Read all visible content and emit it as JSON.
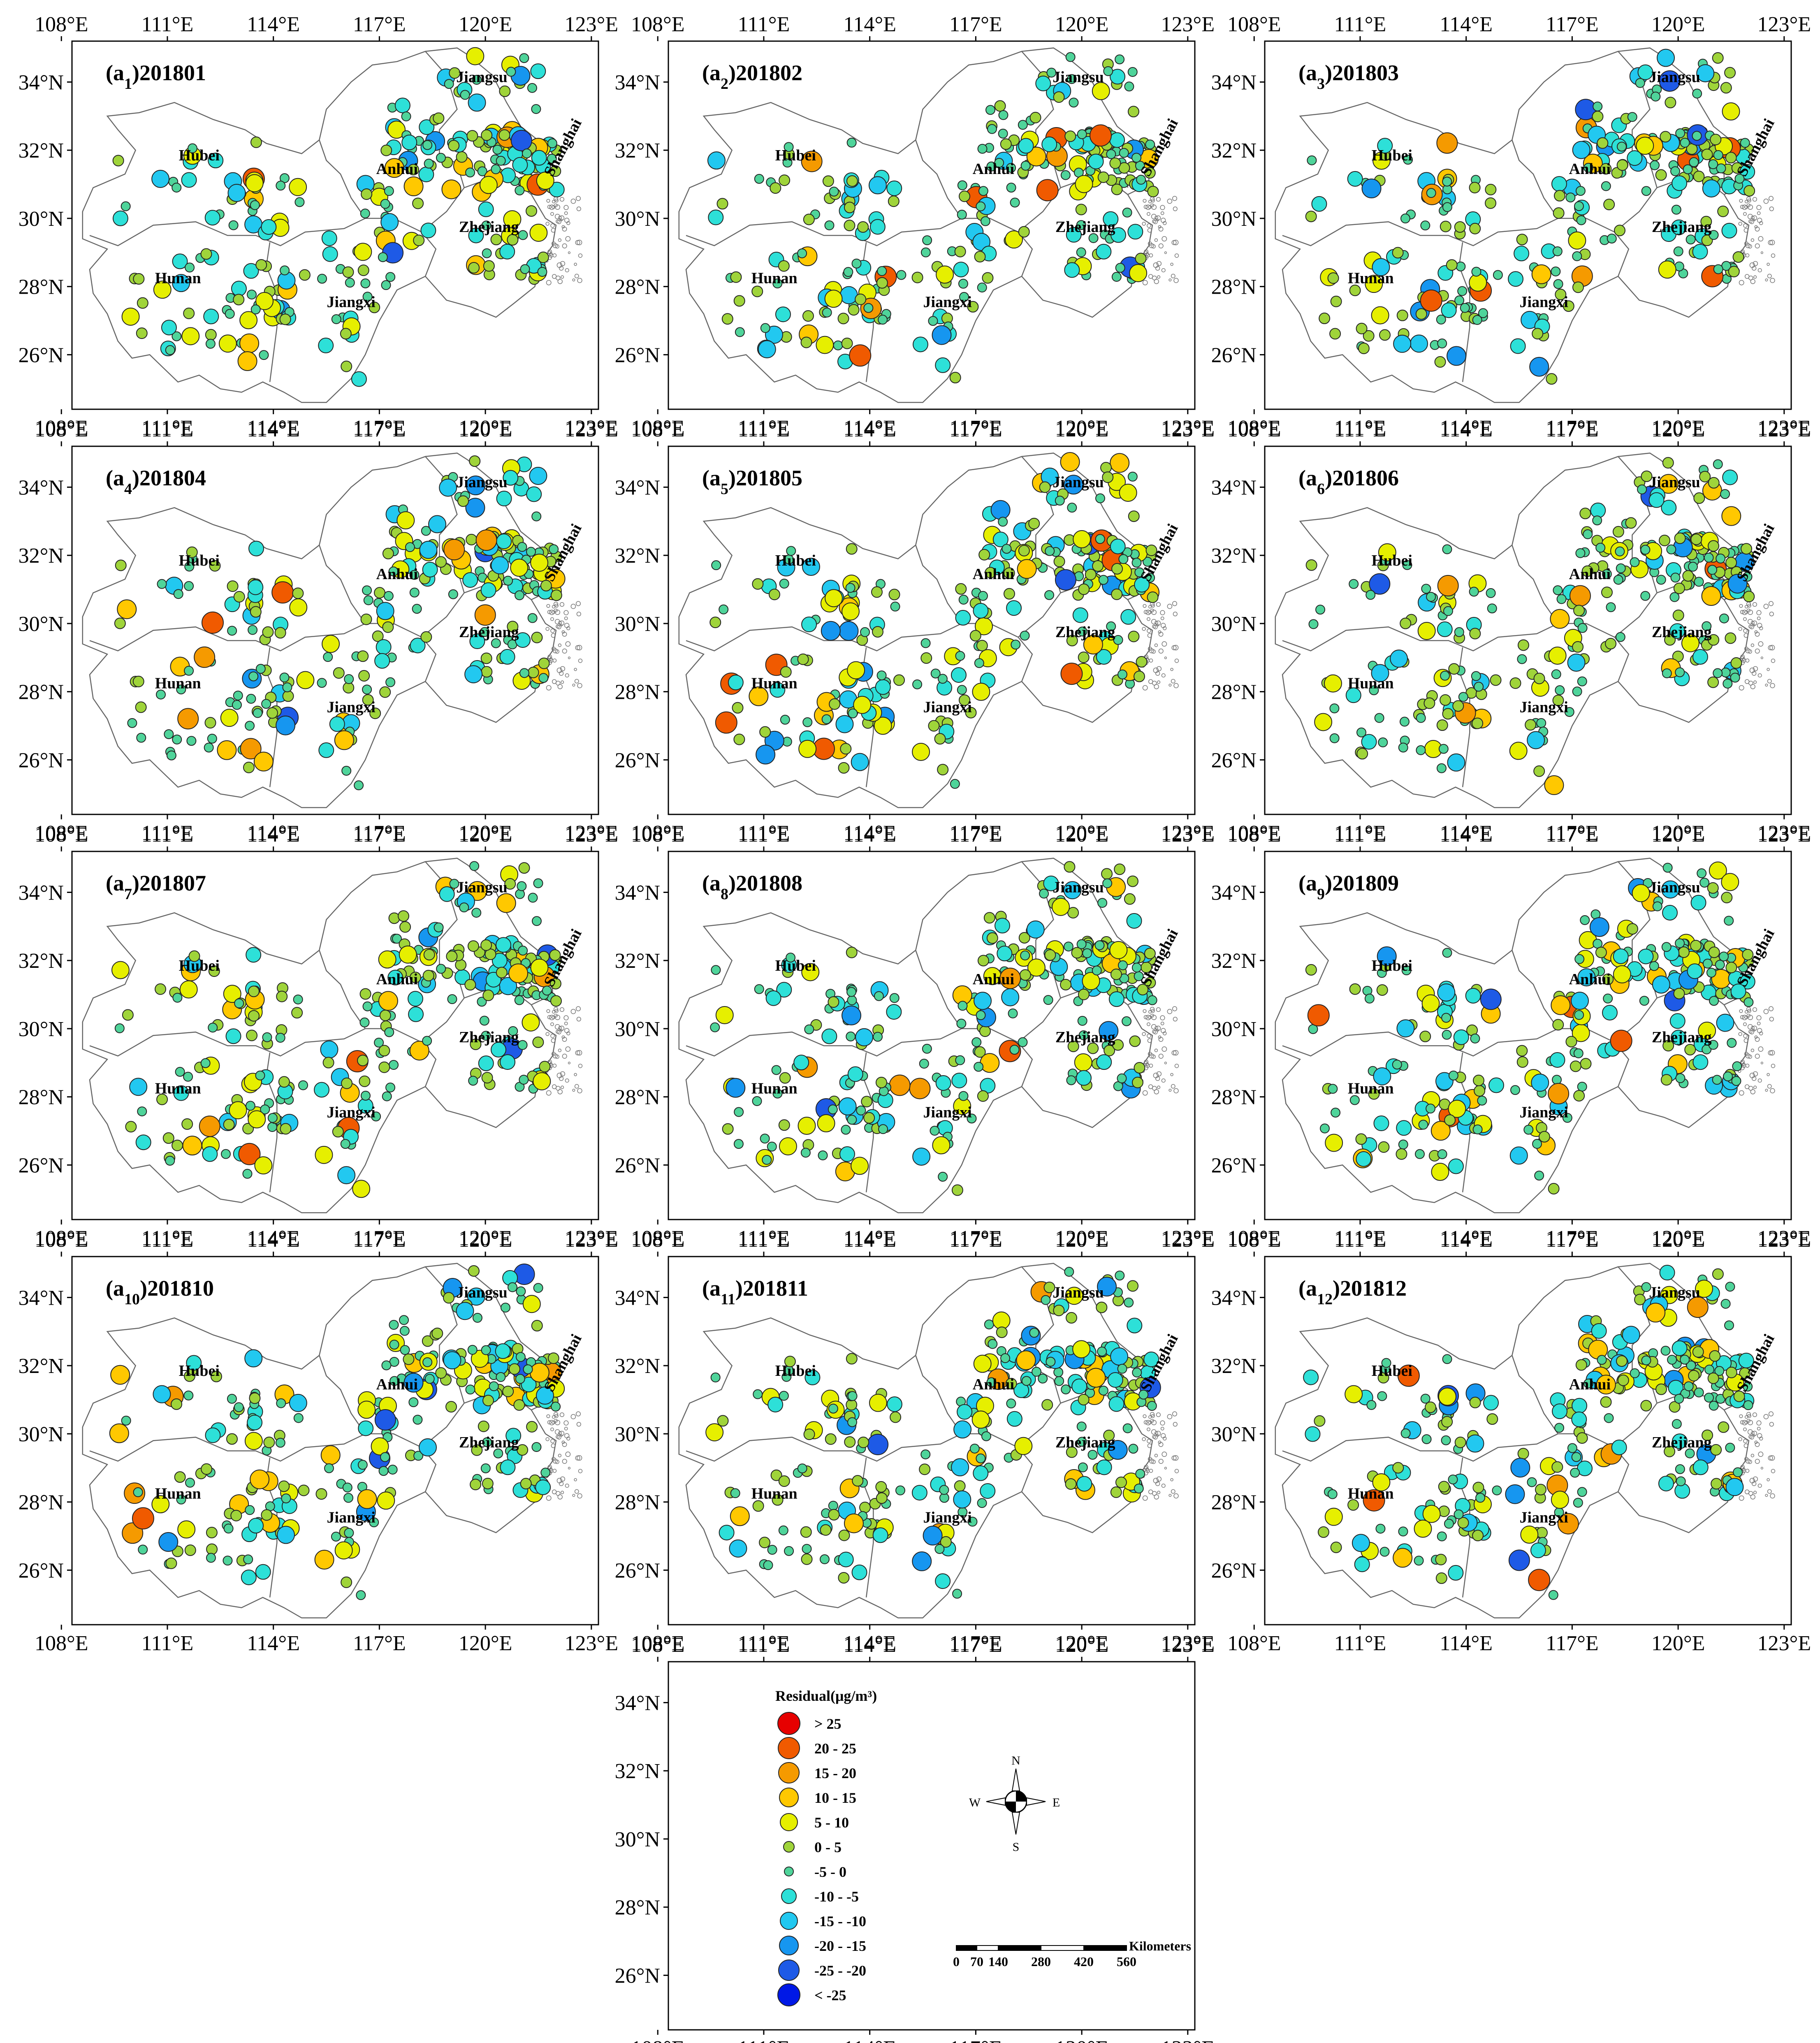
{
  "figure": {
    "lon_ticks": [
      "108°E",
      "111°E",
      "114°E",
      "117°E",
      "120°E",
      "123°E"
    ],
    "lat_ticks": [
      "34°N",
      "32°N",
      "30°N",
      "28°N",
      "26°N"
    ],
    "provinces": [
      "Jiangsu",
      "Hubei",
      "Anhui",
      "Shanghai",
      "Zhejiang",
      "Hunan",
      "Jiangxi"
    ]
  },
  "panels": [
    {
      "sub": "1",
      "date": "201801"
    },
    {
      "sub": "2",
      "date": "201802"
    },
    {
      "sub": "3",
      "date": "201803"
    },
    {
      "sub": "4",
      "date": "201804"
    },
    {
      "sub": "5",
      "date": "201805"
    },
    {
      "sub": "6",
      "date": "201806"
    },
    {
      "sub": "7",
      "date": "201807"
    },
    {
      "sub": "8",
      "date": "201808"
    },
    {
      "sub": "9",
      "date": "201809"
    },
    {
      "sub": "10",
      "date": "201810"
    },
    {
      "sub": "11",
      "date": "201811"
    },
    {
      "sub": "12",
      "date": "201812"
    }
  ],
  "legend": {
    "title": "Residual(μg/m³)",
    "classes": [
      {
        "label": "> 25",
        "color": "#e60000"
      },
      {
        "label": "20 - 25",
        "color": "#f05a00"
      },
      {
        "label": "15 - 20",
        "color": "#f59a00"
      },
      {
        "label": "10 - 15",
        "color": "#ffc800"
      },
      {
        "label": "5 - 10",
        "color": "#e6ef00"
      },
      {
        "label": "0 - 5",
        "color": "#9fd43a"
      },
      {
        "label": "-5 - 0",
        "color": "#4fd49a"
      },
      {
        "label": "-10 - -5",
        "color": "#2de0d8"
      },
      {
        "label": "-15 - -10",
        "color": "#22c8f0"
      },
      {
        "label": "-20 - -15",
        "color": "#1696f0"
      },
      {
        "label": "-25 - -20",
        "color": "#1e5ae6"
      },
      {
        "label": "< -25",
        "color": "#0018e6"
      }
    ]
  },
  "compass": {
    "n": "N",
    "s": "S",
    "e": "E",
    "w": "W"
  },
  "scale_bar": {
    "unit": "Kilometers",
    "labels": [
      "0",
      "70",
      "140",
      "280",
      "420",
      "560"
    ]
  }
}
